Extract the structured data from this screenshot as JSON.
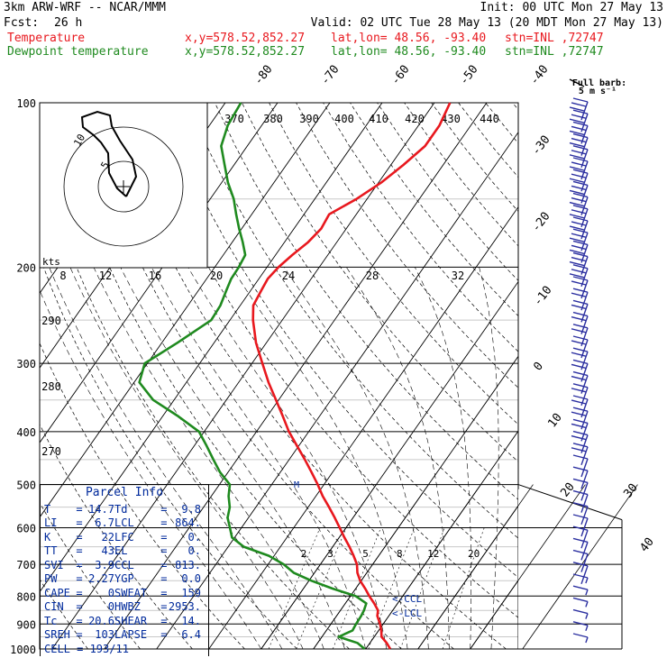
{
  "header": {
    "model": "3km ARW-WRF -- NCAR/MMM",
    "init": "Init: 00 UTC Mon 27 May 13",
    "fcst_label": "Fcst:",
    "fcst_value": "26 h",
    "valid": "Valid: 02 UTC Tue 28 May 13 (20 MDT Mon 27 May 13)",
    "temp_label": "Temperature",
    "dew_label": "Dewpoint temperature",
    "xy": "x,y=578.52,852.27",
    "latlon": "lat,lon= 48.56, -93.40",
    "stn": "stn=INL ,72747"
  },
  "colors": {
    "temperature": "#e8181e",
    "dewpoint": "#1f8a1f",
    "wind": "#2b2fa0",
    "text_blue": "#002a9c"
  },
  "barb_legend": {
    "line1": "Full barb:",
    "line2": "5 m s⁻¹"
  },
  "hodograph": {
    "units": "kts",
    "speed_ticks": [
      "8",
      "12",
      "16",
      "20",
      "24",
      "28",
      "32"
    ],
    "ring_labels": [
      "10",
      "5"
    ]
  },
  "parcel_info": {
    "title": "Parcel Info",
    "rows": [
      [
        [
          "T",
          "14.7"
        ],
        [
          "Td",
          "9.8"
        ]
      ],
      [
        [
          "LI",
          "6.7"
        ],
        [
          "LCL",
          "864."
        ]
      ],
      [
        [
          "K",
          "22"
        ],
        [
          "LFC",
          "0."
        ]
      ],
      [
        [
          "TT",
          "43"
        ],
        [
          "EL",
          "0."
        ]
      ],
      [
        [
          "SVI",
          "3.9"
        ],
        [
          "CCL",
          "813."
        ]
      ],
      [
        [
          "PW",
          "2.27"
        ],
        [
          "YGP",
          "0.0"
        ]
      ],
      [
        [
          "CAPE",
          "0"
        ],
        [
          "SWEAT",
          "159"
        ]
      ],
      [
        [
          "CIN",
          "0"
        ],
        [
          "HWBZ",
          "2953."
        ]
      ],
      [
        [
          "Tc",
          "20.6"
        ],
        [
          "SHEAR",
          "14."
        ]
      ],
      [
        [
          "SREH",
          "103"
        ],
        [
          "LAPSE",
          "6.4"
        ]
      ]
    ],
    "cell": "CELL = 193/11"
  },
  "markers": {
    "ccl": "<-CCL",
    "lcl": "<-LCL"
  },
  "chart_data": {
    "type": "line",
    "title": "3km ARW-WRF -- NCAR/MMM",
    "pressure_levels": [
      100,
      200,
      300,
      400,
      500,
      600,
      700,
      800,
      900,
      1000
    ],
    "isotherm_labels": [
      "-80",
      "-70",
      "-60",
      "-50",
      "-40",
      "-30",
      "-20",
      "-10",
      "0",
      "10",
      "20",
      "30",
      "40"
    ],
    "theta_labels": [
      "370",
      "380",
      "390",
      "400",
      "410",
      "420",
      "430",
      "440"
    ],
    "theta_left_labels": [
      "290",
      "280",
      "270"
    ],
    "mixing_ratio_labels": [
      "2",
      "3",
      "5",
      "8",
      "12",
      "20"
    ],
    "series": [
      {
        "name": "Temperature",
        "values": [
          [
            1000,
            14.7
          ],
          [
            975,
            13.2
          ],
          [
            950,
            11.4
          ],
          [
            925,
            10.5
          ],
          [
            900,
            9.4
          ],
          [
            870,
            7.8
          ],
          [
            850,
            7.2
          ],
          [
            825,
            5.5
          ],
          [
            800,
            3.6
          ],
          [
            775,
            1.8
          ],
          [
            750,
            -0.2
          ],
          [
            725,
            -1.8
          ],
          [
            700,
            -3.0
          ],
          [
            675,
            -4.8
          ],
          [
            650,
            -6.8
          ],
          [
            625,
            -9.0
          ],
          [
            600,
            -11.2
          ],
          [
            575,
            -13.5
          ],
          [
            550,
            -16.0
          ],
          [
            525,
            -18.7
          ],
          [
            500,
            -21.2
          ],
          [
            475,
            -24.0
          ],
          [
            450,
            -27.0
          ],
          [
            425,
            -30.3
          ],
          [
            400,
            -33.8
          ],
          [
            375,
            -37.0
          ],
          [
            350,
            -40.5
          ],
          [
            325,
            -44.3
          ],
          [
            300,
            -48.0
          ],
          [
            275,
            -52.0
          ],
          [
            250,
            -55.6
          ],
          [
            235,
            -57.5
          ],
          [
            220,
            -58.0
          ],
          [
            210,
            -58.3
          ],
          [
            200,
            -57.8
          ],
          [
            190,
            -56.8
          ],
          [
            180,
            -55.5
          ],
          [
            170,
            -54.8
          ],
          [
            160,
            -55.2
          ],
          [
            150,
            -52.0
          ],
          [
            140,
            -49.5
          ],
          [
            130,
            -47.6
          ],
          [
            120,
            -46.0
          ],
          [
            110,
            -46.0
          ],
          [
            100,
            -47.0
          ]
        ]
      },
      {
        "name": "Dewpoint temperature",
        "values": [
          [
            1000,
            9.8
          ],
          [
            975,
            7.6
          ],
          [
            950,
            3.2
          ],
          [
            925,
            5.0
          ],
          [
            900,
            4.8
          ],
          [
            870,
            4.7
          ],
          [
            850,
            4.5
          ],
          [
            825,
            4.0
          ],
          [
            800,
            1.0
          ],
          [
            775,
            -4.5
          ],
          [
            750,
            -9.5
          ],
          [
            725,
            -14.0
          ],
          [
            700,
            -17.0
          ],
          [
            675,
            -21.0
          ],
          [
            650,
            -27.0
          ],
          [
            625,
            -30.5
          ],
          [
            600,
            -32.2
          ],
          [
            575,
            -34.0
          ],
          [
            550,
            -35.0
          ],
          [
            525,
            -36.7
          ],
          [
            500,
            -38.0
          ],
          [
            475,
            -41.5
          ],
          [
            450,
            -44.5
          ],
          [
            425,
            -47.6
          ],
          [
            400,
            -51.0
          ],
          [
            375,
            -57.0
          ],
          [
            350,
            -64.0
          ],
          [
            325,
            -69.0
          ],
          [
            300,
            -70.5
          ],
          [
            275,
            -67.0
          ],
          [
            250,
            -63.6
          ],
          [
            235,
            -63.8
          ],
          [
            220,
            -64.7
          ],
          [
            210,
            -65.3
          ],
          [
            200,
            -65.4
          ],
          [
            190,
            -65.8
          ],
          [
            180,
            -68.0
          ],
          [
            170,
            -70.5
          ],
          [
            160,
            -73.0
          ],
          [
            150,
            -75.5
          ],
          [
            140,
            -78.8
          ],
          [
            130,
            -81.8
          ],
          [
            120,
            -85.0
          ],
          [
            110,
            -86.5
          ],
          [
            100,
            -87.0
          ]
        ]
      }
    ],
    "xlabel": "",
    "ylabel": "",
    "ylim": [
      1000,
      100
    ]
  }
}
